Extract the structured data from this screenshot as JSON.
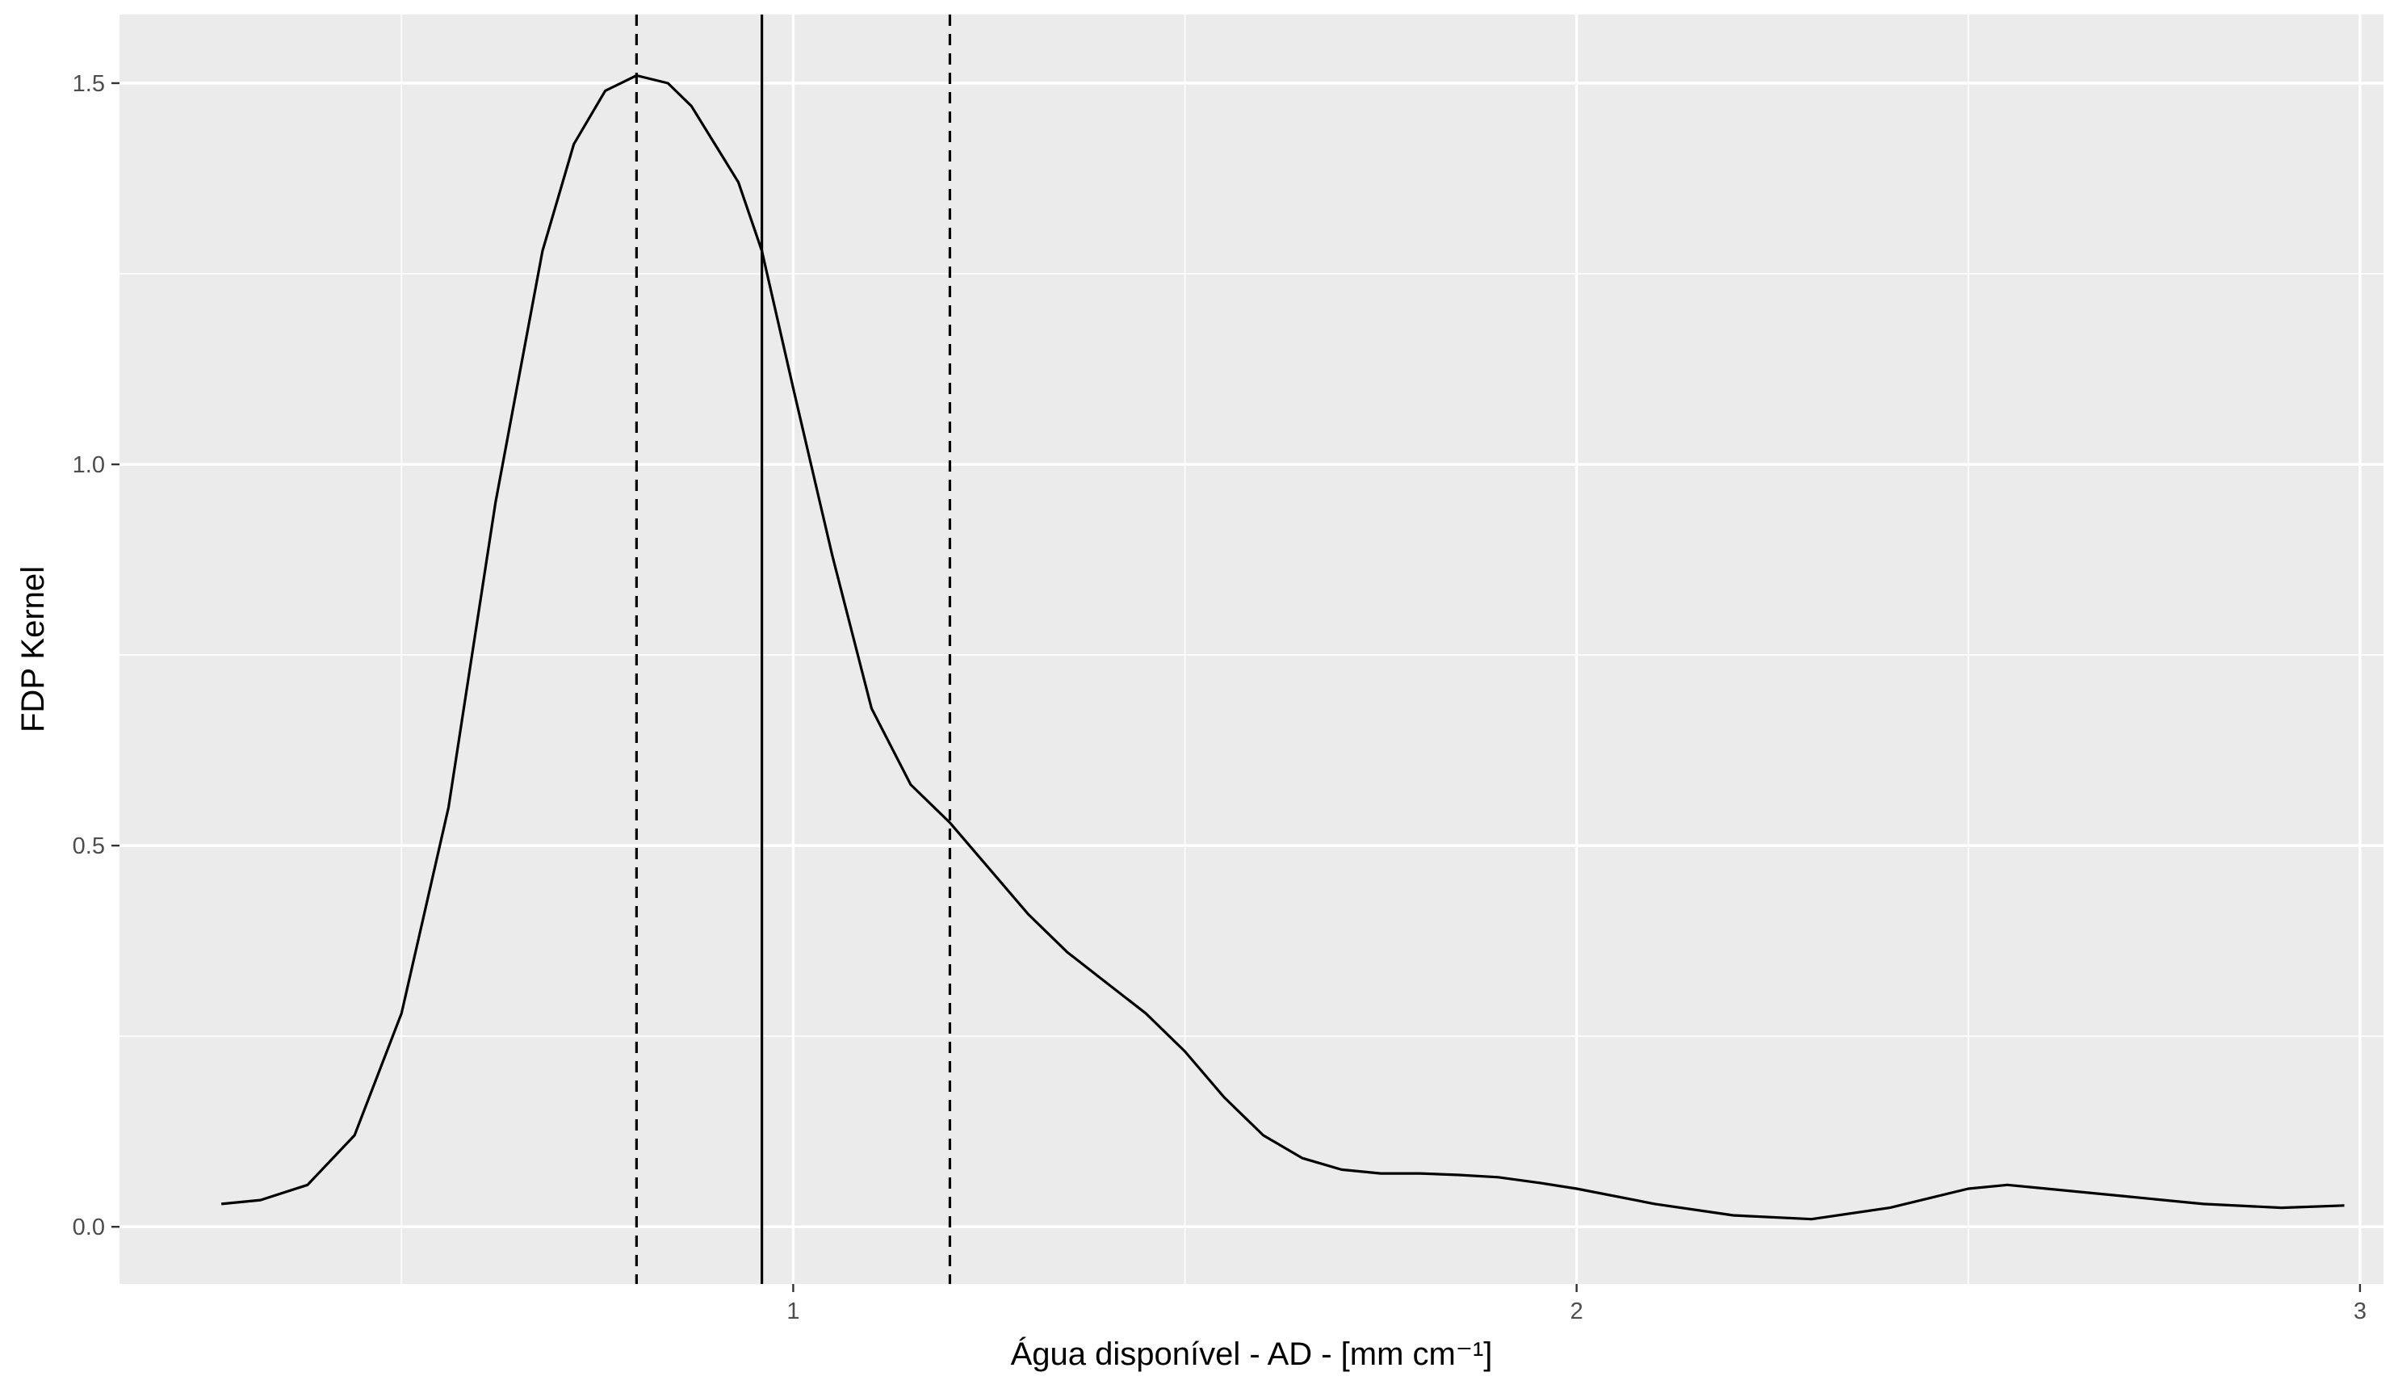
{
  "chart_data": {
    "type": "line",
    "title": "",
    "xlabel": "Água disponível - AD - [mm cm⁻¹]",
    "ylabel": "FDP Kernel",
    "xlim": [
      0.14,
      3.03
    ],
    "ylim": [
      -0.075,
      1.59
    ],
    "x_ticks": [
      1,
      2,
      3
    ],
    "x_tick_labels": [
      "1",
      "2",
      "3"
    ],
    "x_minor_ticks": [
      0.5,
      1.5,
      2.5
    ],
    "y_ticks": [
      0.0,
      0.5,
      1.0,
      1.5
    ],
    "y_tick_labels": [
      "0.0",
      "0.5",
      "1.0",
      "1.5"
    ],
    "y_minor_ticks": [
      0.25,
      0.75,
      1.25
    ],
    "grid": true,
    "legend": "none",
    "panel_color": "#ebebeb",
    "grid_color": "#ffffff",
    "line_color": "#000000",
    "series": [
      {
        "x": [
          0.27,
          0.32,
          0.38,
          0.44,
          0.5,
          0.56,
          0.62,
          0.68,
          0.72,
          0.76,
          0.8,
          0.84,
          0.87,
          0.9,
          0.93,
          0.96,
          1.0,
          1.05,
          1.1,
          1.15,
          1.2,
          1.25,
          1.3,
          1.35,
          1.4,
          1.45,
          1.5,
          1.55,
          1.6,
          1.65,
          1.7,
          1.75,
          1.8,
          1.85,
          1.9,
          1.95,
          2.0,
          2.1,
          2.2,
          2.3,
          2.4,
          2.5,
          2.55,
          2.6,
          2.7,
          2.8,
          2.9,
          2.98
        ],
        "y": [
          0.03,
          0.035,
          0.055,
          0.12,
          0.28,
          0.55,
          0.95,
          1.28,
          1.42,
          1.49,
          1.51,
          1.5,
          1.47,
          1.42,
          1.37,
          1.28,
          1.1,
          0.88,
          0.68,
          0.58,
          0.53,
          0.47,
          0.41,
          0.36,
          0.32,
          0.28,
          0.23,
          0.17,
          0.12,
          0.09,
          0.075,
          0.07,
          0.07,
          0.068,
          0.065,
          0.058,
          0.05,
          0.03,
          0.015,
          0.01,
          0.025,
          0.05,
          0.055,
          0.05,
          0.04,
          0.03,
          0.025,
          0.028
        ]
      }
    ],
    "vlines": [
      {
        "x": 0.8,
        "style": "dashed"
      },
      {
        "x": 0.96,
        "style": "solid"
      },
      {
        "x": 1.2,
        "style": "dashed"
      }
    ]
  }
}
